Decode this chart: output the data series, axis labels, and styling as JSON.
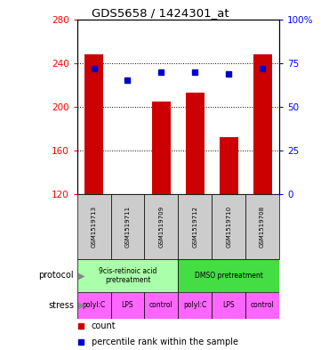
{
  "title": "GDS5658 / 1424301_at",
  "samples": [
    "GSM1519713",
    "GSM1519711",
    "GSM1519709",
    "GSM1519712",
    "GSM1519710",
    "GSM1519708"
  ],
  "counts": [
    248,
    120,
    205,
    213,
    172,
    248
  ],
  "percentile_ranks": [
    72,
    65,
    70,
    70,
    69,
    72
  ],
  "ylim_left": [
    120,
    280
  ],
  "ylim_right": [
    0,
    100
  ],
  "yticks_left": [
    120,
    160,
    200,
    240,
    280
  ],
  "yticks_right": [
    0,
    25,
    50,
    75,
    100
  ],
  "bar_color": "#cc0000",
  "dot_color": "#0000cc",
  "protocol_labels": [
    "9cis-retinoic acid\npretreatment",
    "DMSO pretreatment"
  ],
  "protocol_color_1": "#aaffaa",
  "protocol_color_2": "#44dd44",
  "stress_labels": [
    "polyI:C",
    "LPS",
    "control",
    "polyI:C",
    "LPS",
    "control"
  ],
  "stress_color": "#ff66ff",
  "sample_box_color": "#cccccc",
  "legend_count_color": "#cc0000",
  "legend_dot_color": "#0000cc"
}
